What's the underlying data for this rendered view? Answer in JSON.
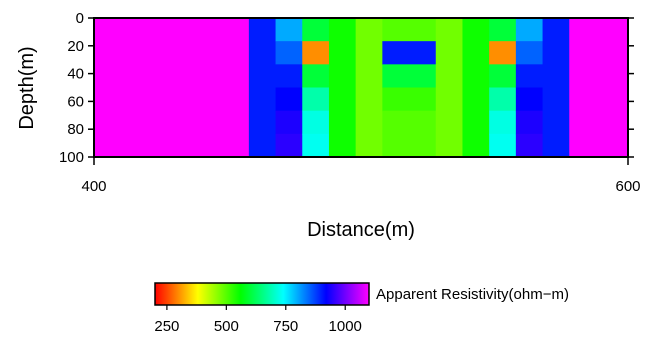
{
  "chart_data": {
    "type": "heatmap",
    "xlabel": "Distance(m)",
    "ylabel": "Depth(m)",
    "xlim": [
      400,
      600
    ],
    "ylim": [
      0,
      100
    ],
    "y_inverted": true,
    "x_ticks": [
      400,
      600
    ],
    "y_ticks": [
      0,
      20,
      40,
      60,
      80,
      100
    ],
    "grid": false,
    "columns": [
      {
        "x0": 400,
        "x1": 458,
        "values": [
          1100
        ]
      },
      {
        "x0": 458,
        "x1": 468,
        "values": [
          900
        ]
      },
      {
        "x0": 468,
        "x1": 478,
        "values": [
          800,
          850,
          900,
          920,
          940,
          950
        ]
      },
      {
        "x0": 478,
        "x1": 488,
        "values": [
          600,
          300,
          600,
          680,
          720,
          730
        ]
      },
      {
        "x0": 488,
        "x1": 498,
        "values": [
          550
        ]
      },
      {
        "x0": 498,
        "x1": 508,
        "values": [
          480
        ]
      },
      {
        "x0": 508,
        "x1": 528,
        "values": [
          500,
          900,
          600,
          520,
          500,
          500
        ]
      },
      {
        "x0": 528,
        "x1": 538,
        "values": [
          480
        ]
      },
      {
        "x0": 538,
        "x1": 548,
        "values": [
          550
        ]
      },
      {
        "x0": 548,
        "x1": 558,
        "values": [
          600,
          300,
          600,
          680,
          720,
          730
        ]
      },
      {
        "x0": 558,
        "x1": 568,
        "values": [
          800,
          850,
          900,
          920,
          940,
          950
        ]
      },
      {
        "x0": 568,
        "x1": 578,
        "values": [
          900
        ]
      },
      {
        "x0": 578,
        "x1": 600,
        "values": [
          1100
        ]
      }
    ],
    "colorbar": {
      "label": "Apparent Resistivity(ohm−m)",
      "range": [
        200,
        1100
      ],
      "ticks": [
        250,
        500,
        750,
        1000
      ],
      "colors": [
        "#ff0000",
        "#ffff00",
        "#00ff00",
        "#00ffff",
        "#0000ff",
        "#ff00ff"
      ]
    }
  }
}
